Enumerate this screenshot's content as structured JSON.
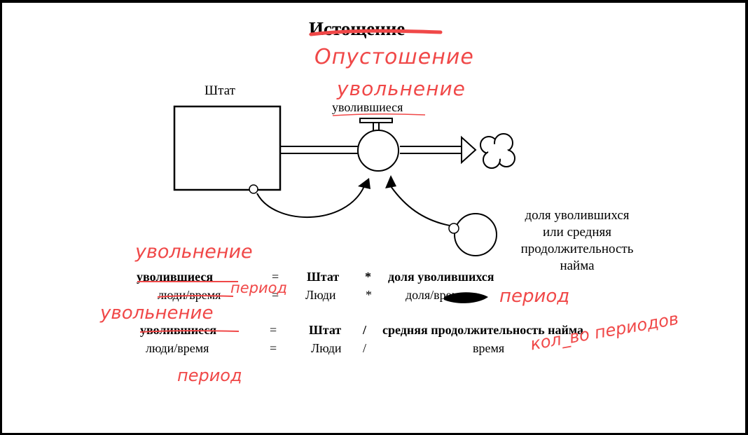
{
  "title": "Истощение",
  "handwritten": {
    "title_replacement_1": "Опустошение",
    "title_replacement_2": "увольнение",
    "eq1_replacement": "увольнение",
    "eq1_unit": "период",
    "eq1_share_unit": "период",
    "eq2_replacement": "увольнение",
    "eq2_time_unit": "кол_во периодов",
    "eq2_unit": "период"
  },
  "diagram": {
    "stock_label": "Штат",
    "flow_label": "уволившиеся",
    "aux_label_lines": [
      "доля уволившихся",
      "или средняя",
      "продолжительность",
      "найма"
    ]
  },
  "equations": [
    {
      "lhs": "уволившиеся",
      "eq": "=",
      "a": "Штат",
      "op": "*",
      "b": "доля уволившихся",
      "units": {
        "lhs": "люди/время",
        "eq": "=",
        "a": "Люди",
        "op": "*",
        "b": "доля/время"
      }
    },
    {
      "lhs": "уволившиеся",
      "eq": "=",
      "a": "Штат",
      "op": "/",
      "b": "средняя продолжительность найма",
      "units": {
        "lhs": "люди/время",
        "eq": "=",
        "a": "Люди",
        "op": "/",
        "b": "время"
      }
    }
  ],
  "colors": {
    "ink": "#000000",
    "handwriting": "#f04848",
    "background": "#ffffff"
  }
}
